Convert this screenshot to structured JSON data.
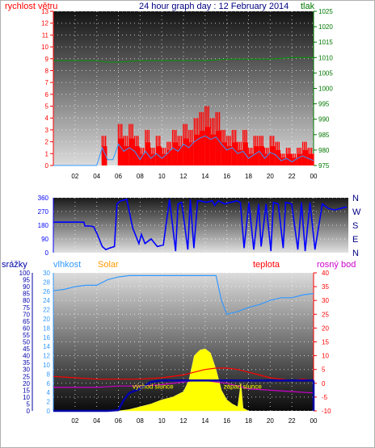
{
  "title": "24 hour graph day : 12 February 2014",
  "colors": {
    "wind": "#ff0000",
    "wind_avg": "#3399ff",
    "pressure": "#009900",
    "direction": "#0000ff",
    "humidity": "#3399ff",
    "solar": "#ffff00",
    "temperature": "#ff0000",
    "dewpoint": "#cc00cc",
    "rain": "#0000aa",
    "sunrise_marker": "#0000ff",
    "axis_text_left": "#ff0000",
    "axis_text_right": "#007700"
  },
  "labels": {
    "wind": "rychlost větru",
    "pressure": "tlak",
    "rain": "srážky",
    "humidity": "vlhkost",
    "solar": "Solar",
    "temperature": "teplota",
    "dewpoint": "rosný bod",
    "sunrise": "východ slunce",
    "sunset": "západ slunce"
  },
  "chart_data": [
    {
      "type": "line",
      "panel": "wind-pressure",
      "x_ticks": [
        "02",
        "04",
        "06",
        "08",
        "10",
        "12",
        "14",
        "16",
        "18",
        "20",
        "22",
        "00"
      ],
      "y_left": {
        "label": "rychlost větru",
        "lim": [
          0,
          13
        ],
        "ticks": [
          0,
          1,
          2,
          3,
          4,
          5,
          6,
          7,
          8,
          9,
          10,
          11,
          12,
          13
        ]
      },
      "y_right": {
        "label": "tlak",
        "lim": [
          975,
          1025
        ],
        "ticks": [
          975,
          980,
          985,
          990,
          995,
          1000,
          1005,
          1010,
          1015,
          1020,
          1025
        ]
      },
      "grid": true,
      "series": [
        {
          "name": "gust",
          "axis": "left",
          "style": "bars",
          "x": [
            0,
            1,
            2,
            3,
            4,
            4.5,
            5,
            5.5,
            6,
            6.5,
            7,
            7.5,
            8,
            8.5,
            9,
            9.5,
            10,
            10.5,
            11,
            11.5,
            12,
            12.5,
            13,
            13.5,
            14,
            14.5,
            15,
            15.5,
            16,
            16.5,
            17,
            17.5,
            18,
            18.5,
            19,
            19.5,
            20,
            20.5,
            21,
            21.5,
            22,
            22.5,
            23,
            23.5,
            24
          ],
          "values": [
            0,
            0,
            0,
            0,
            0,
            2.5,
            0,
            0,
            3.5,
            2.5,
            3.5,
            2.5,
            1.5,
            3.0,
            1.5,
            2.5,
            1.5,
            2.0,
            3.0,
            2.5,
            3.5,
            3.0,
            4.0,
            4.5,
            5.0,
            4.0,
            4.5,
            3.0,
            2.5,
            3.0,
            2.0,
            3.0,
            1.5,
            2.5,
            2.5,
            1.5,
            2.5,
            2.0,
            1.0,
            1.5,
            1.0,
            1.5,
            2.0,
            1.5,
            1.0
          ]
        },
        {
          "name": "average",
          "axis": "left",
          "style": "line",
          "x": [
            0,
            1,
            2,
            3,
            4,
            4.5,
            5,
            5.5,
            6,
            6.5,
            7,
            7.5,
            8,
            8.5,
            9,
            9.5,
            10,
            10.5,
            11,
            11.5,
            12,
            12.5,
            13,
            13.5,
            14,
            14.5,
            15,
            15.5,
            16,
            16.5,
            17,
            17.5,
            18,
            18.5,
            19,
            19.5,
            20,
            20.5,
            21,
            21.5,
            22,
            22.5,
            23,
            23.5,
            24
          ],
          "values": [
            0,
            0,
            0,
            0,
            0,
            1.5,
            0.5,
            0.5,
            1.8,
            1.2,
            1.5,
            1.2,
            0.5,
            1.2,
            0.6,
            1.0,
            0.6,
            1.0,
            1.5,
            1.2,
            1.8,
            1.5,
            2.0,
            2.3,
            2.5,
            2.2,
            2.4,
            1.8,
            1.3,
            1.5,
            1.0,
            1.2,
            0.6,
            0.9,
            1.2,
            0.6,
            1.1,
            0.9,
            0.4,
            0.6,
            0.3,
            0.6,
            0.8,
            0.6,
            0.4
          ]
        },
        {
          "name": "pressure",
          "axis": "right",
          "style": "line",
          "x": [
            0,
            2,
            4,
            5,
            6,
            8,
            10,
            12,
            14,
            16,
            18,
            20,
            22,
            24
          ],
          "values": [
            1009,
            1009,
            1009,
            1008.5,
            1008.5,
            1009,
            1009,
            1009,
            1009,
            1009.5,
            1009.5,
            1009.5,
            1010,
            1010
          ]
        }
      ]
    },
    {
      "type": "line",
      "panel": "wind-direction",
      "x_ticks": [],
      "y_left": {
        "lim": [
          0,
          360
        ],
        "ticks": [
          0,
          90,
          180,
          270,
          360
        ]
      },
      "y_right": {
        "ticks": [
          "N",
          "W",
          "S",
          "E",
          "N"
        ]
      },
      "grid": true,
      "series": [
        {
          "name": "direction",
          "x": [
            0,
            2.5,
            2.6,
            3,
            3.3,
            3.6,
            4,
            4.3,
            4.6,
            5,
            5.2,
            5.5,
            6,
            6.5,
            7,
            7.2,
            7.5,
            8,
            8.5,
            9,
            9.5,
            10,
            10.2,
            10.5,
            11,
            11.2,
            11.5,
            11.8,
            12,
            12.5,
            13,
            13.2,
            13.5,
            14,
            14.5,
            15,
            15.3,
            15.6,
            16,
            16.4,
            16.8,
            17,
            17.4,
            17.8,
            18,
            18.4,
            18.8,
            19,
            19.5,
            20,
            20.3,
            20.6,
            21,
            21.4,
            22,
            22.5,
            23,
            23.5,
            24
          ],
          "values": [
            200,
            200,
            175,
            175,
            170,
            120,
            40,
            20,
            30,
            40,
            320,
            340,
            350,
            160,
            60,
            120,
            60,
            90,
            40,
            50,
            350,
            10,
            320,
            330,
            20,
            350,
            30,
            340,
            340,
            330,
            340,
            310,
            340,
            320,
            330,
            340,
            330,
            30,
            330,
            20,
            320,
            40,
            320,
            10,
            330,
            320,
            30,
            330,
            320,
            20,
            330,
            10,
            330,
            20,
            320,
            290,
            280,
            290,
            300
          ]
        }
      ]
    },
    {
      "type": "line",
      "panel": "rain-humidity-solar-temp",
      "x_ticks": [
        "02",
        "04",
        "06",
        "08",
        "10",
        "12",
        "14",
        "16",
        "18",
        "20",
        "22",
        "00"
      ],
      "y_rain": {
        "label": "srážky",
        "lim": [
          0,
          100
        ],
        "ticks": [
          0,
          5,
          10,
          15,
          20,
          25,
          30,
          35,
          40,
          45,
          50,
          55,
          60,
          65,
          70,
          75,
          80,
          85,
          90,
          95,
          100
        ]
      },
      "y_humidity": {
        "label": "vlhkost",
        "lim": [
          0,
          30
        ],
        "ticks": [
          0,
          2,
          4,
          6,
          8,
          10,
          12,
          14,
          16,
          18,
          20,
          22,
          24,
          26,
          28,
          30
        ]
      },
      "y_temp": {
        "label": "teplota",
        "lim": [
          -10,
          40
        ],
        "ticks": [
          -10,
          -5,
          0,
          5,
          10,
          15,
          20,
          25,
          30,
          35,
          40
        ]
      },
      "grid": true,
      "annotations": [
        "východ slunce",
        "západ slunce"
      ],
      "series": [
        {
          "name": "humidity",
          "axis": "rain",
          "style": "line",
          "x": [
            0,
            1,
            2,
            3,
            4,
            5,
            6,
            7,
            8,
            9,
            10,
            11,
            12,
            13,
            14,
            15,
            15.5,
            16,
            17,
            18,
            19,
            20,
            21,
            22,
            23,
            24
          ],
          "values": [
            87,
            88,
            90,
            91,
            91,
            95,
            97,
            98,
            98,
            98,
            98,
            98,
            98,
            98,
            98,
            98,
            80,
            70,
            72,
            75,
            77,
            80,
            82,
            82,
            84,
            85
          ]
        },
        {
          "name": "solar",
          "axis": "rain",
          "style": "area",
          "x": [
            6,
            7,
            8,
            9,
            10,
            11,
            12,
            12.5,
            13,
            13.5,
            14,
            14.5,
            15,
            15.5,
            16,
            16.5,
            17,
            17.3,
            17.5,
            18
          ],
          "values": [
            0,
            1,
            3,
            5,
            8,
            10,
            14,
            22,
            40,
            44,
            45,
            42,
            30,
            15,
            8,
            5,
            3,
            20,
            2,
            0
          ]
        },
        {
          "name": "temperature",
          "axis": "temp",
          "style": "line",
          "x": [
            0,
            2,
            4,
            6,
            8,
            10,
            12,
            13,
            14,
            15,
            16,
            17,
            18,
            19,
            20,
            21,
            22,
            23,
            24
          ],
          "values": [
            2.5,
            2,
            1.5,
            1.5,
            1.5,
            2,
            3,
            4,
            5,
            5.5,
            5.5,
            5,
            4,
            3,
            2,
            1.5,
            1,
            1.5,
            1
          ]
        },
        {
          "name": "dewpoint",
          "axis": "temp",
          "style": "line",
          "x": [
            0,
            2,
            4,
            6,
            8,
            10,
            12,
            13,
            14,
            15,
            16,
            17,
            18,
            20,
            22,
            24
          ],
          "values": [
            -1.5,
            -1.5,
            -1.5,
            -1,
            -1,
            -0.5,
            0.5,
            1,
            1,
            0.5,
            0,
            -1,
            -2,
            -2.5,
            -3,
            -3.5
          ]
        },
        {
          "name": "rain",
          "axis": "rain",
          "style": "line",
          "x": [
            0,
            5,
            6,
            6.5,
            7,
            8,
            9,
            10,
            11,
            12,
            13,
            14,
            15,
            16,
            17,
            18,
            19,
            20,
            21,
            22,
            23,
            24
          ],
          "values": [
            0,
            0,
            0.5,
            8,
            13,
            16,
            21,
            22,
            22,
            22,
            22,
            22,
            22,
            22,
            22,
            22,
            22,
            22,
            22,
            22,
            22,
            22
          ]
        }
      ]
    }
  ]
}
